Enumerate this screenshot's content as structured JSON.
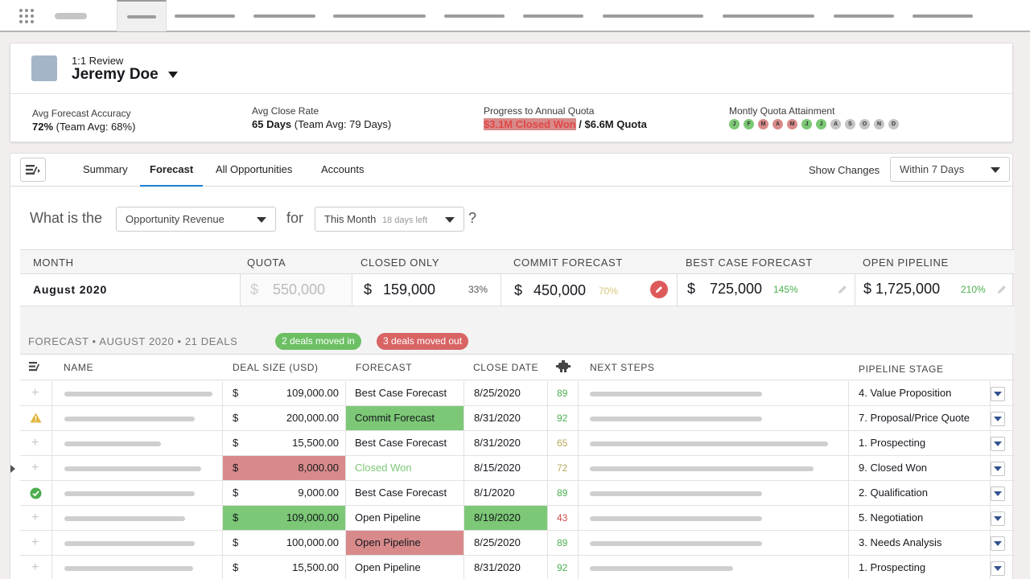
{
  "nav": {
    "tab_count": 11
  },
  "header": {
    "review_label": "1:1 Review",
    "person_name": "Jeremy Doe",
    "stats": {
      "accuracy_label": "Avg Forecast Accuracy",
      "accuracy_value": "72%",
      "accuracy_team": "(Team Avg: 68%)",
      "close_rate_label": "Avg Close Rate",
      "close_rate_value": "65 Days",
      "close_rate_team": "(Team Avg: 79 Days)",
      "quota_label": "Progress to Annual Quota",
      "quota_closed": "$3.1M Closed Won",
      "quota_sep": "/",
      "quota_total": "$6.6M Quota",
      "attainment_label": "Montly Quota Attainment"
    },
    "months": [
      {
        "letter": "J",
        "color": "#7cc876"
      },
      {
        "letter": "F",
        "color": "#7cc876"
      },
      {
        "letter": "M",
        "color": "#d88a8a"
      },
      {
        "letter": "A",
        "color": "#d88a8a"
      },
      {
        "letter": "M",
        "color": "#d88a8a"
      },
      {
        "letter": "J",
        "color": "#7cc876"
      },
      {
        "letter": "J",
        "color": "#7cc876"
      },
      {
        "letter": "A",
        "color": "#c4c4c4"
      },
      {
        "letter": "S",
        "color": "#c4c4c4"
      },
      {
        "letter": "O",
        "color": "#c4c4c4"
      },
      {
        "letter": "N",
        "color": "#c4c4c4"
      },
      {
        "letter": "D",
        "color": "#c4c4c4"
      }
    ]
  },
  "tabs": {
    "summary": "Summary",
    "forecast": "Forecast",
    "all_opportunities": "All Opportunities",
    "accounts": "Accounts",
    "show_changes_label": "Show Changes",
    "show_changes_value": "Within 7 Days"
  },
  "question": {
    "prefix": "What is the",
    "metric": "Opportunity Revenue",
    "for": "for",
    "period": "This Month",
    "period_note": "18 days left",
    "suffix": "?"
  },
  "summary": {
    "headers": {
      "month": "MONTH",
      "quota": "QUOTA",
      "closed": "CLOSED ONLY",
      "commit": "COMMIT FORECAST",
      "best": "BEST CASE FORECAST",
      "open": "OPEN PIPELINE"
    },
    "month": "August 2020",
    "quota_currency": "$",
    "quota": "550,000",
    "closed_currency": "$",
    "closed": "159,000",
    "closed_pct": "33%",
    "commit_currency": "$",
    "commit": "450,000",
    "commit_pct": "70%",
    "best_currency": "$",
    "best": "725,000",
    "best_pct": "145%",
    "open": "$ 1,725,000",
    "open_pct": "210%"
  },
  "deals": {
    "title": "FORECAST • AUGUST 2020 • 21 DEALS",
    "moved_in": "2 deals moved in",
    "moved_out": "3 deals moved out",
    "columns": {
      "name": "NAME",
      "deal_size": "DEAL SIZE (USD)",
      "forecast": "FORECAST",
      "close_date": "CLOSE DATE",
      "next_steps": "NEXT STEPS",
      "stage": "PIPELINE STAGE"
    },
    "rows": [
      {
        "status": "plus",
        "currency": "$",
        "size": "109,000.00",
        "forecast": "Best Case Forecast",
        "date": "8/25/2020",
        "score": "89",
        "stage": "4. Value Proposition"
      },
      {
        "status": "warning",
        "currency": "$",
        "size": "200,000.00",
        "forecast": "Commit Forecast",
        "date": "8/31/2020",
        "score": "92",
        "stage": "7. Proposal/Price Quote"
      },
      {
        "status": "plus",
        "currency": "$",
        "size": "15,500.00",
        "forecast": "Best Case Forecast",
        "date": "8/31/2020",
        "score": "65",
        "stage": "1. Prospecting"
      },
      {
        "status": "plus",
        "currency": "$",
        "size": "8,000.00",
        "forecast": "Closed Won",
        "date": "8/15/2020",
        "score": "72",
        "stage": "9. Closed Won"
      },
      {
        "status": "check",
        "currency": "$",
        "size": "9,000.00",
        "forecast": "Best Case Forecast",
        "date": "8/1/2020",
        "score": "89",
        "stage": "2. Qualification"
      },
      {
        "status": "plus",
        "currency": "$",
        "size": "109,000.00",
        "forecast": "Open Pipeline",
        "date": "8/19/2020",
        "score": "43",
        "stage": "5. Negotiation"
      },
      {
        "status": "plus",
        "currency": "$",
        "size": "100,000.00",
        "forecast": "Open Pipeline",
        "date": "8/25/2020",
        "score": "89",
        "stage": "3. Needs Analysis"
      },
      {
        "status": "plus",
        "currency": "$",
        "size": "15,500.00",
        "forecast": "Open Pipeline",
        "date": "8/31/2020",
        "score": "92",
        "stage": "1. Prospecting"
      }
    ]
  },
  "colors": {
    "accent": "#1b7fd0",
    "green": "#7cc876",
    "red": "#d88a8a",
    "alert_red": "#e04848",
    "score_green": "#4caf50",
    "score_yellow": "#b7a85a",
    "score_red": "#d04a4a"
  }
}
